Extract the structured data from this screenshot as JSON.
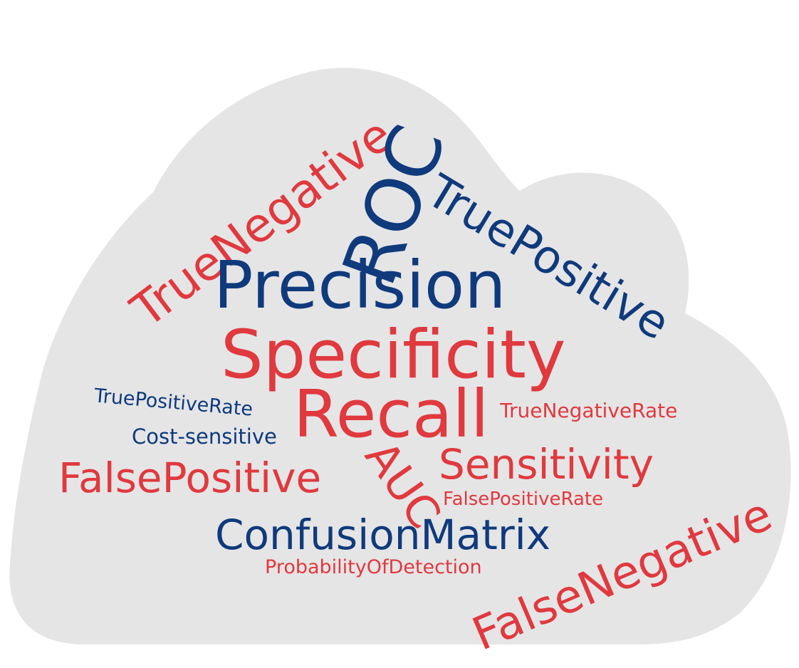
{
  "colors": {
    "red": "#e0393e",
    "blue": "#0f3a7c",
    "cloud": "#e5e5e6"
  },
  "words": {
    "true_negative": "TrueNegative",
    "roc": "ROC",
    "true_positive": "TruePositive",
    "precision": "Precision",
    "specificity": "Specificity",
    "true_positive_rate": "TruePositiveRate",
    "recall": "Recall",
    "true_negative_rate": "TrueNegativeRate",
    "cost_sensitive": "Cost-sensitive",
    "auc": "AUC",
    "sensitivity": "Sensitivity",
    "false_positive": "FalsePositive",
    "false_positive_rate": "FalsePositiveRate",
    "confusion_matrix": "ConfusionMatrix",
    "probability_of_detection": "ProbabilityOfDetection",
    "false_negative": "FalseNegative"
  }
}
